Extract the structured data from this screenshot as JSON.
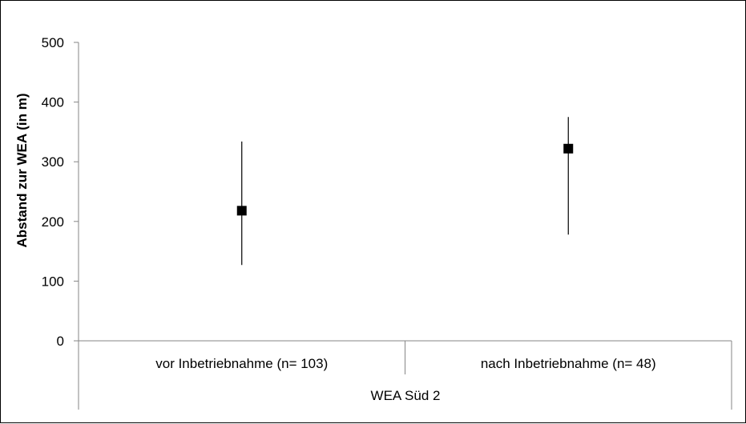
{
  "chart_data": {
    "type": "scatter",
    "title": "",
    "ylabel": "Abstand zur WEA (in m)",
    "xlabel": "",
    "ylim": [
      0,
      500
    ],
    "y_ticks": [
      0,
      100,
      200,
      300,
      400,
      500
    ],
    "grid": false,
    "legend": "none",
    "group_label": "WEA Süd 2",
    "categories": [
      "vor Inbetriebnahme (n= 103)",
      "nach Inbetriebnahme (n= 48)"
    ],
    "series": [
      {
        "values": [
          218,
          322
        ],
        "error_low": [
          127,
          178
        ],
        "error_high": [
          334,
          375
        ],
        "marker": "square",
        "color": "#000000"
      }
    ]
  }
}
